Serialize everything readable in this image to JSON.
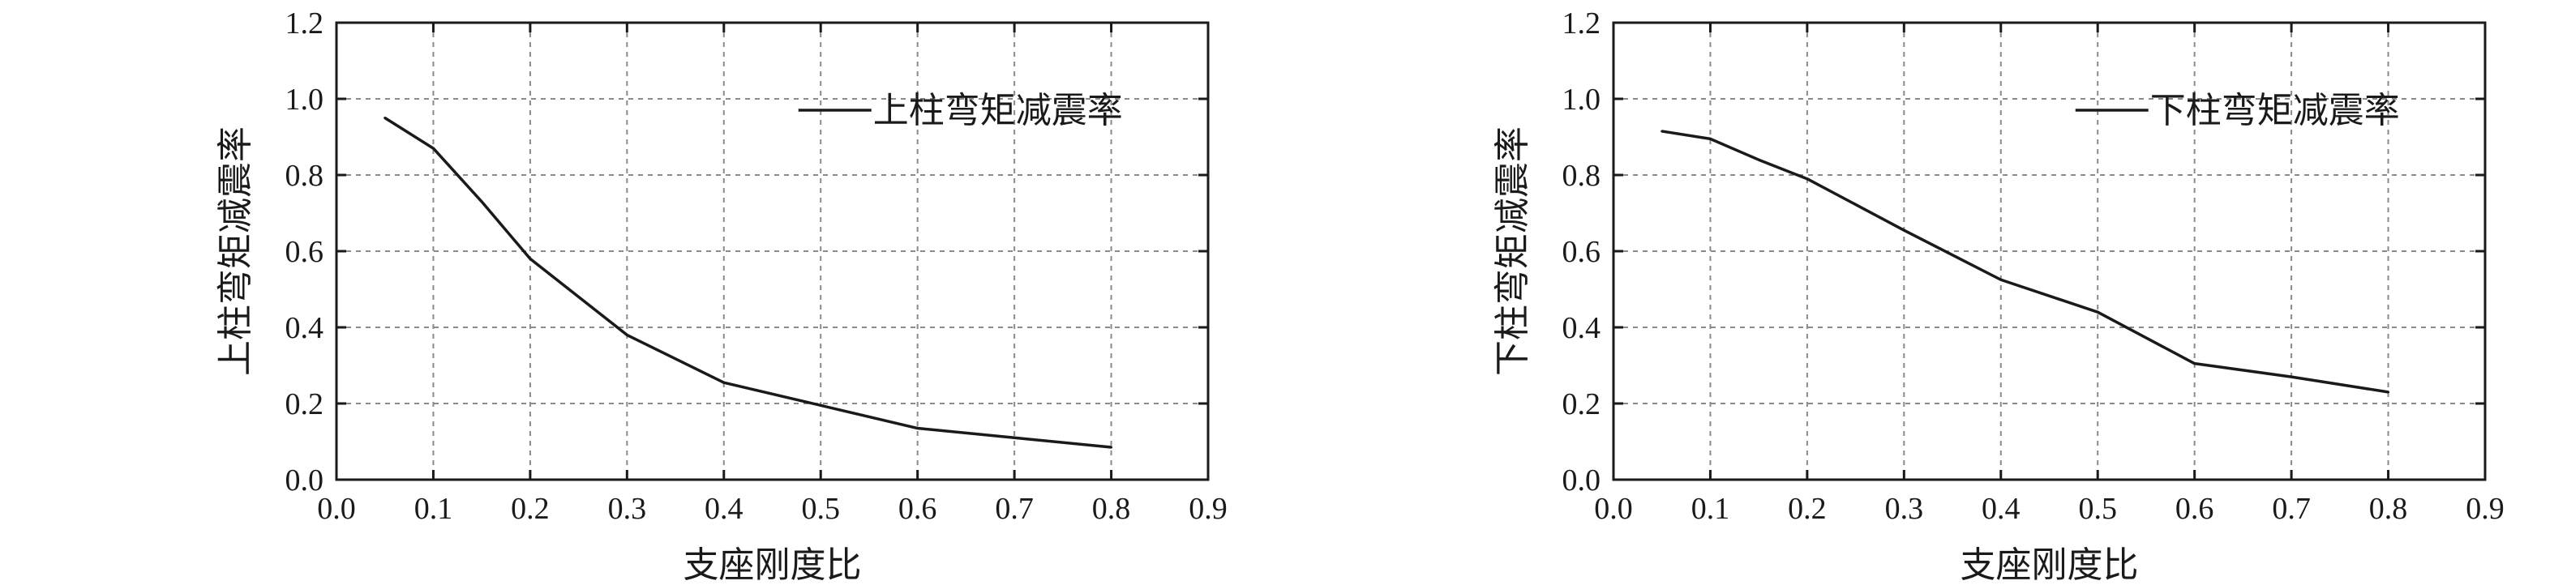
{
  "chart_data": [
    {
      "type": "line",
      "xlabel": "支座刚度比",
      "ylabel": "上柱弯矩减震率",
      "xlim": [
        0,
        0.9
      ],
      "ylim": [
        0,
        1.2
      ],
      "x_ticks": [
        "0.0",
        "0.1",
        "0.2",
        "0.3",
        "0.4",
        "0.5",
        "0.6",
        "0.7",
        "0.8",
        "0.9"
      ],
      "y_ticks": [
        "0.0",
        "0.2",
        "0.4",
        "0.6",
        "0.8",
        "1.0",
        "1.2"
      ],
      "grid": true,
      "legend_position": "top-right",
      "series": [
        {
          "name": "上柱弯矩减震率",
          "x": [
            0.05,
            0.1,
            0.15,
            0.2,
            0.3,
            0.4,
            0.5,
            0.6,
            0.7,
            0.8
          ],
          "y": [
            0.95,
            0.87,
            0.73,
            0.58,
            0.38,
            0.255,
            0.195,
            0.135,
            0.11,
            0.085
          ]
        }
      ]
    },
    {
      "type": "line",
      "xlabel": "支座刚度比",
      "ylabel": "下柱弯矩减震率",
      "xlim": [
        0,
        0.9
      ],
      "ylim": [
        0,
        1.2
      ],
      "x_ticks": [
        "0.0",
        "0.1",
        "0.2",
        "0.3",
        "0.4",
        "0.5",
        "0.6",
        "0.7",
        "0.8",
        "0.9"
      ],
      "y_ticks": [
        "0.0",
        "0.2",
        "0.4",
        "0.6",
        "0.8",
        "1.0",
        "1.2"
      ],
      "grid": true,
      "legend_position": "top-right",
      "series": [
        {
          "name": "下柱弯矩减震率",
          "x": [
            0.05,
            0.1,
            0.15,
            0.2,
            0.3,
            0.4,
            0.5,
            0.6,
            0.7,
            0.8
          ],
          "y": [
            0.915,
            0.895,
            0.84,
            0.79,
            0.655,
            0.525,
            0.44,
            0.305,
            0.27,
            0.23
          ]
        }
      ]
    }
  ]
}
